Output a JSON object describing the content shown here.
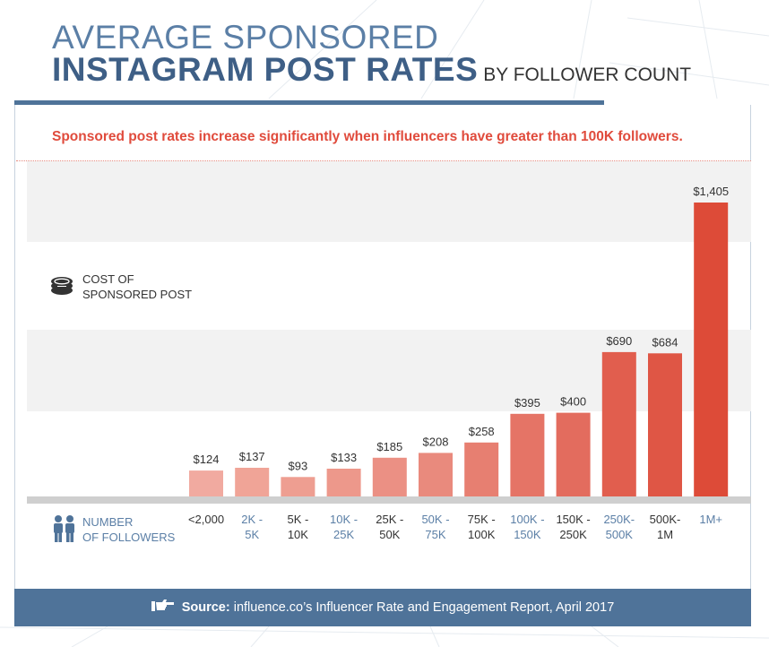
{
  "header": {
    "title_line1": "AVERAGE SPONSORED",
    "title_line2": "INSTAGRAM POST RATES",
    "title_suffix": "BY FOLLOWER COUNT",
    "subtitle": "Sponsored post rates increase significantly when influencers have greater than 100K followers."
  },
  "labels": {
    "cost_line1": "COST OF",
    "cost_line2": "SPONSORED POST",
    "followers_line1": "NUMBER",
    "followers_line2": "OF FOLLOWERS"
  },
  "icons": {
    "cost": "coin-stack-icon",
    "followers": "people-icon",
    "source": "pointing-hand-icon"
  },
  "footer": {
    "source_label": "Source:",
    "source_text": "influence.co’s Influencer Rate and Engagement Report, April 2017"
  },
  "colors": {
    "title_light": "#5b7fa6",
    "title_dark": "#3e5f86",
    "accent_red": "#e04b3c",
    "bar_lightest": "#f1aaa0",
    "bar_darkest": "#dd4b38",
    "footer_bg": "#4f7399"
  },
  "chart_data": {
    "type": "bar",
    "title": "AVERAGE SPONSORED INSTAGRAM POST RATES BY FOLLOWER COUNT",
    "xlabel": "NUMBER OF FOLLOWERS",
    "ylabel": "COST OF SPONSORED POST",
    "ylim": [
      0,
      1500
    ],
    "categories": [
      [
        "<2,000"
      ],
      [
        "2K -",
        "5K"
      ],
      [
        "5K -",
        "10K"
      ],
      [
        "10K -",
        "25K"
      ],
      [
        "25K -",
        "50K"
      ],
      [
        "50K -",
        "75K"
      ],
      [
        "75K -",
        "100K"
      ],
      [
        "100K -",
        "150K"
      ],
      [
        "150K -",
        "250K"
      ],
      [
        "250K-",
        "500K"
      ],
      [
        "500K-",
        "1M"
      ],
      [
        "1M+"
      ]
    ],
    "values": [
      124,
      137,
      93,
      133,
      185,
      208,
      258,
      395,
      400,
      690,
      684,
      1405
    ],
    "value_labels": [
      "$124",
      "$137",
      "$93",
      "$133",
      "$185",
      "$208",
      "$258",
      "$395",
      "$400",
      "$690",
      "$684",
      "$1,405"
    ],
    "bar_colors": [
      "#f1aaa0",
      "#f0a497",
      "#ee9e91",
      "#ed988b",
      "#eb9084",
      "#e98a7d",
      "#e77f71",
      "#e57466",
      "#e36c5e",
      "#e15e4e",
      "#df5645",
      "#dd4b38"
    ],
    "tick_colors": [
      "#333333",
      "#5b7fa6",
      "#333333",
      "#5b7fa6",
      "#333333",
      "#5b7fa6",
      "#333333",
      "#5b7fa6",
      "#333333",
      "#5b7fa6",
      "#333333",
      "#5b7fa6"
    ],
    "grid": false
  }
}
